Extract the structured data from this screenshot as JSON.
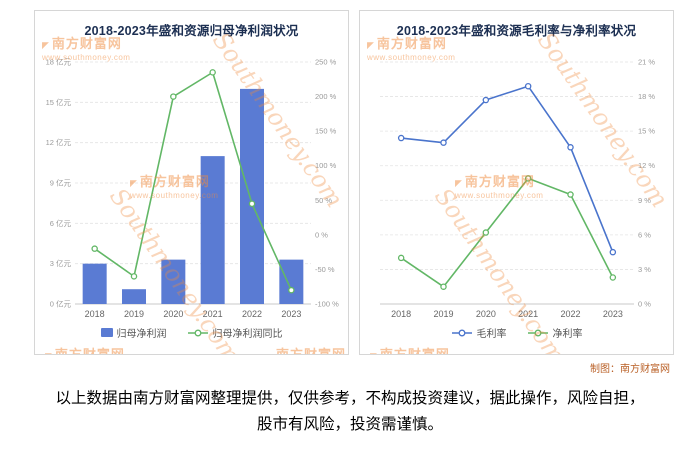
{
  "watermark": {
    "brand": "南方财富网",
    "url": "www.southmoney.com",
    "script": "Southmoney.com"
  },
  "credit": "制图：南方财富网",
  "disclaimer": "以上数据由南方财富网整理提供，仅供参考，不构成投资建议，据此操作，风险自担，股市有风险，投资需谨慎。",
  "chart_data": [
    {
      "type": "bar",
      "title": "2018-2023年盛和资源归母净利润状况",
      "categories": [
        "2018",
        "2019",
        "2020",
        "2021",
        "2022",
        "2023"
      ],
      "series": [
        {
          "name": "归母净利润",
          "kind": "bar",
          "axis": "left",
          "color": "#5a7bd3",
          "values": [
            3.0,
            1.1,
            3.3,
            11.0,
            16.0,
            3.3
          ]
        },
        {
          "name": "归母净利润同比",
          "kind": "line",
          "axis": "right",
          "color": "#62b766",
          "values": [
            -20,
            -60,
            200,
            235,
            45,
            -80
          ]
        }
      ],
      "axis_left": {
        "min": 0,
        "max": 18,
        "step": 3,
        "unit": "亿元"
      },
      "axis_right": {
        "min": -100,
        "max": 250,
        "step": 50,
        "unit": "%"
      },
      "grid": "dashed-horizontal",
      "legend_position": "bottom"
    },
    {
      "type": "line",
      "title": "2018-2023年盛和资源毛利率与净利率状况",
      "categories": [
        "2018",
        "2019",
        "2020",
        "2021",
        "2022",
        "2023"
      ],
      "series": [
        {
          "name": "毛利率",
          "kind": "line",
          "axis": "right",
          "color": "#4a74cc",
          "values": [
            14.4,
            14.0,
            17.7,
            18.9,
            13.6,
            4.5
          ]
        },
        {
          "name": "净利率",
          "kind": "line",
          "axis": "right",
          "color": "#62b766",
          "values": [
            4.0,
            1.5,
            6.2,
            10.9,
            9.5,
            2.3
          ]
        }
      ],
      "axis_right": {
        "min": 0,
        "max": 21,
        "step": 3,
        "unit": "%"
      },
      "grid": "dashed-horizontal",
      "legend_position": "bottom"
    }
  ]
}
